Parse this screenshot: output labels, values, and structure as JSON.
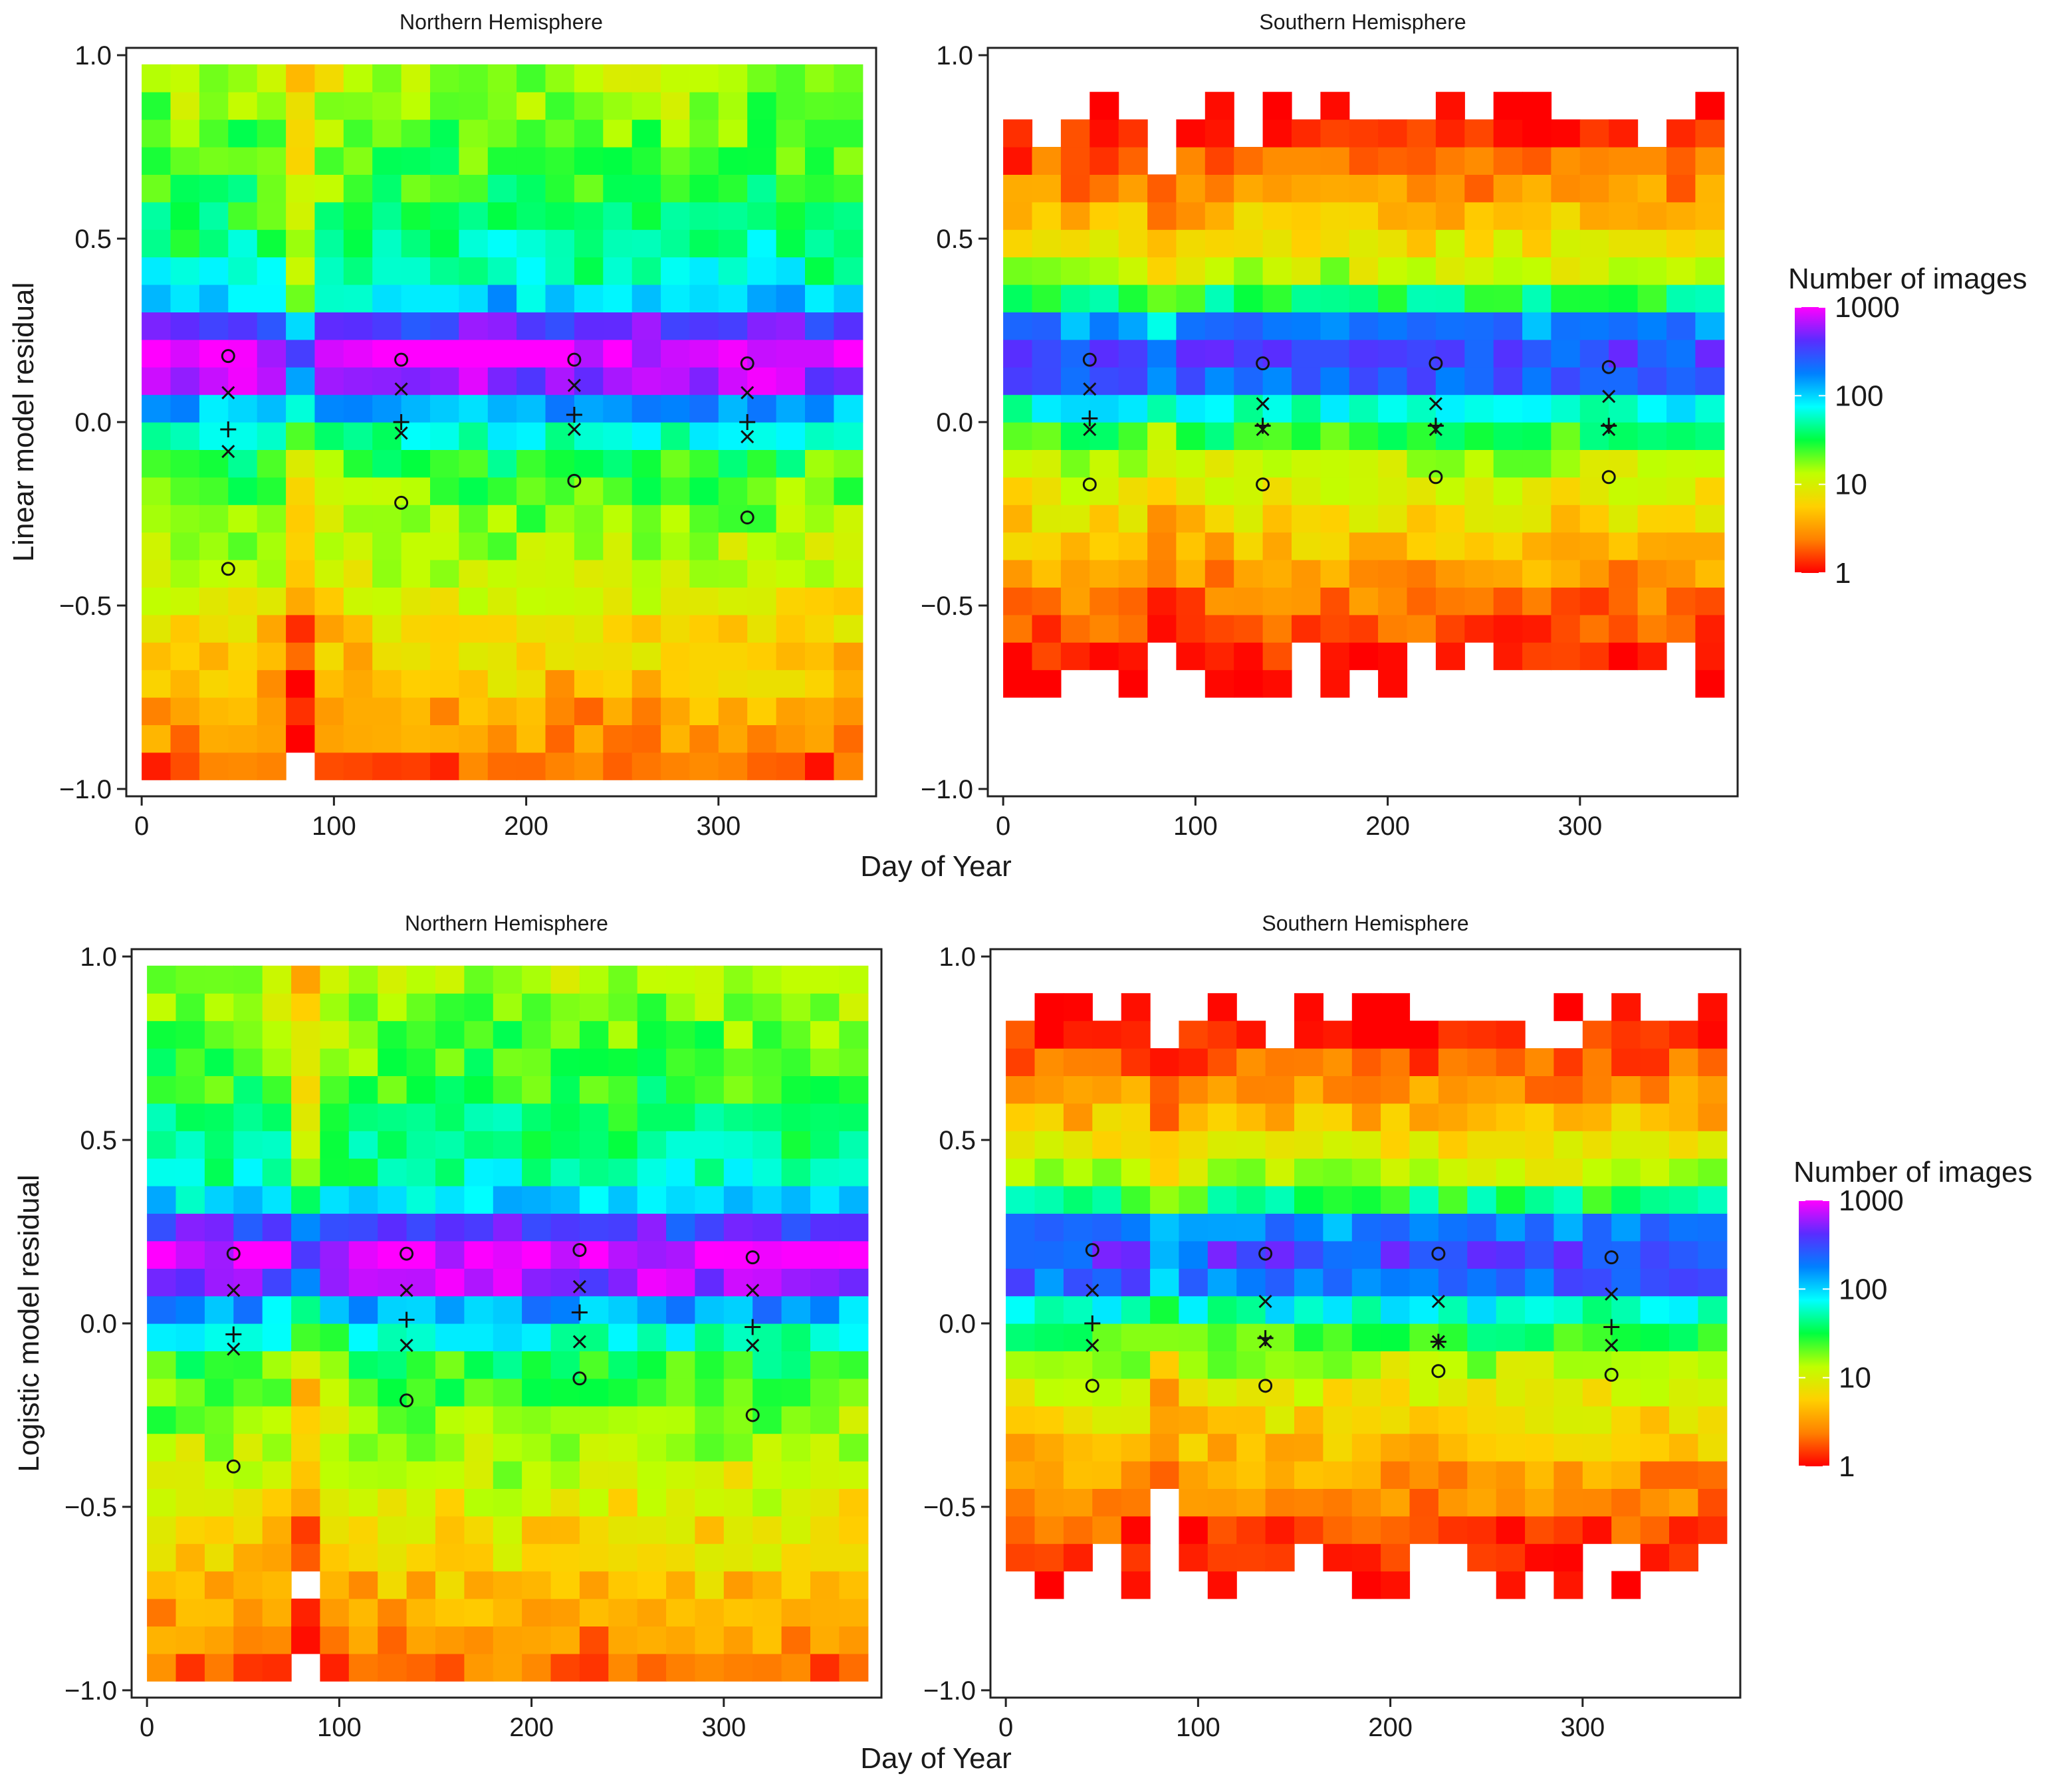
{
  "figure": {
    "x_axis_title": "Day of Year",
    "legend": {
      "title": "Number of images",
      "ticks": [
        "1000",
        "100",
        "10",
        "1"
      ],
      "tick_values": [
        1000,
        100,
        10,
        1
      ],
      "colors": [
        "#ff00ff",
        "#5a2cff",
        "#0080ff",
        "#00ffff",
        "#00ff40",
        "#c0ff00",
        "#ffd000",
        "#ff8000",
        "#ff0000"
      ]
    }
  },
  "chart_data": [
    {
      "type": "heatmap",
      "title": "Northern Hemisphere",
      "xlabel": "Day of Year",
      "ylabel": "Linear model residual",
      "xlim": [
        -8,
        382
      ],
      "ylim": [
        -1.02,
        1.02
      ],
      "xticks": [
        "0",
        "100",
        "200",
        "300"
      ],
      "yticks": [
        "-1.0",
        "-0.5",
        "0.0",
        "0.5",
        "1.0"
      ],
      "x_bin_width": 15,
      "y_bin_width": 0.075,
      "color_scale": "log",
      "color_range": [
        1,
        1000
      ],
      "heat_profile": [
        2,
        3,
        3.5,
        5,
        6,
        7,
        9,
        12,
        15,
        18,
        22,
        30,
        60,
        150,
        600,
        900,
        400,
        100,
        60,
        45,
        35,
        28,
        25,
        22,
        18,
        15
      ],
      "day_profile": [
        1.1,
        1.0,
        1.0,
        1.1,
        0.9,
        0.3,
        0.8,
        0.9,
        1.0,
        1.0,
        1.1,
        1.1,
        1.2,
        1.1,
        1.0,
        1.0,
        1.0,
        1.1,
        1.0,
        1.1,
        1.0,
        1.2,
        1.1,
        0.9,
        0.9
      ],
      "summary_points": {
        "day": [
          45,
          135,
          225,
          315
        ],
        "upper_circle": [
          0.18,
          0.17,
          0.17,
          0.16
        ],
        "upper_cross": [
          0.08,
          0.09,
          0.1,
          0.08
        ],
        "plus": [
          -0.02,
          0.0,
          0.02,
          0.0
        ],
        "lower_cross": [
          -0.08,
          -0.03,
          -0.02,
          -0.04
        ],
        "lower_circle": [
          -0.4,
          -0.22,
          -0.16,
          -0.26
        ]
      }
    },
    {
      "type": "heatmap",
      "title": "Southern Hemisphere",
      "xlabel": "Day of Year",
      "ylabel": "",
      "xlim": [
        -8,
        382
      ],
      "ylim": [
        -1.02,
        1.02
      ],
      "xticks": [
        "0",
        "100",
        "200",
        "300"
      ],
      "yticks": [
        "-1.0",
        "-0.5",
        "0.0",
        "0.5",
        "1.0"
      ],
      "x_bin_width": 15,
      "y_bin_width": 0.075,
      "color_scale": "log",
      "color_range": [
        1,
        1000
      ],
      "heat_profile": [
        0.4,
        0.5,
        0.6,
        0.8,
        1.2,
        1.8,
        2.5,
        3.5,
        5,
        7,
        10,
        15,
        30,
        70,
        250,
        350,
        180,
        40,
        14,
        8,
        5,
        3,
        2,
        1.3,
        0.8,
        0.5
      ],
      "day_profile": [
        1.0,
        1.0,
        1.0,
        1.0,
        1.0,
        0.5,
        0.9,
        1.0,
        1.0,
        1.0,
        1.0,
        1.0,
        1.0,
        1.0,
        1.0,
        1.0,
        1.0,
        1.0,
        1.0,
        1.0,
        1.0,
        1.0,
        1.0,
        1.0,
        1.0
      ],
      "summary_points": {
        "day": [
          45,
          135,
          225,
          315
        ],
        "upper_circle": [
          0.17,
          0.16,
          0.16,
          0.15
        ],
        "upper_cross": [
          0.09,
          0.05,
          0.05,
          0.07
        ],
        "plus": [
          0.01,
          -0.01,
          -0.01,
          -0.01
        ],
        "lower_cross": [
          -0.02,
          -0.02,
          -0.02,
          -0.02
        ],
        "lower_circle": [
          -0.17,
          -0.17,
          -0.15,
          -0.15
        ]
      }
    },
    {
      "type": "heatmap",
      "title": "Northern Hemisphere",
      "xlabel": "Day of Year",
      "ylabel": "Logistic model residual",
      "xlim": [
        -8,
        382
      ],
      "ylim": [
        -1.02,
        1.02
      ],
      "xticks": [
        "0",
        "100",
        "200",
        "300"
      ],
      "yticks": [
        "-1.0",
        "-0.5",
        "0.0",
        "0.5",
        "1.0"
      ],
      "x_bin_width": 15,
      "y_bin_width": 0.075,
      "color_scale": "log",
      "color_range": [
        1,
        1000
      ],
      "heat_profile": [
        2,
        3,
        3.5,
        5,
        6,
        7,
        9,
        12,
        15,
        18,
        22,
        30,
        60,
        150,
        600,
        900,
        400,
        100,
        60,
        45,
        35,
        28,
        25,
        22,
        18,
        15
      ],
      "day_profile": [
        1.1,
        1.0,
        1.0,
        1.1,
        0.9,
        0.3,
        0.8,
        0.9,
        1.0,
        1.0,
        1.1,
        1.1,
        1.2,
        1.1,
        1.0,
        1.0,
        1.0,
        1.1,
        1.0,
        1.1,
        1.0,
        1.2,
        1.1,
        0.9,
        0.9
      ],
      "summary_points": {
        "day": [
          45,
          135,
          225,
          315
        ],
        "upper_circle": [
          0.19,
          0.19,
          0.2,
          0.18
        ],
        "upper_cross": [
          0.09,
          0.09,
          0.1,
          0.09
        ],
        "plus": [
          -0.03,
          0.01,
          0.03,
          -0.01
        ],
        "lower_cross": [
          -0.07,
          -0.06,
          -0.05,
          -0.06
        ],
        "lower_circle": [
          -0.39,
          -0.21,
          -0.15,
          -0.25
        ]
      }
    },
    {
      "type": "heatmap",
      "title": "Southern Hemisphere",
      "xlabel": "Day of Year",
      "ylabel": "",
      "xlim": [
        -8,
        382
      ],
      "ylim": [
        -1.02,
        1.02
      ],
      "xticks": [
        "0",
        "100",
        "200",
        "300"
      ],
      "yticks": [
        "-1.0",
        "-0.5",
        "0.0",
        "0.5",
        "1.0"
      ],
      "x_bin_width": 15,
      "y_bin_width": 0.075,
      "color_scale": "log",
      "color_range": [
        1,
        1000
      ],
      "heat_profile": [
        0.4,
        0.5,
        0.6,
        0.8,
        1.2,
        1.8,
        2.5,
        3.5,
        5,
        7,
        10,
        15,
        30,
        70,
        250,
        350,
        180,
        40,
        14,
        8,
        5,
        3,
        2,
        1.3,
        0.8,
        0.5
      ],
      "day_profile": [
        1.0,
        1.0,
        1.0,
        1.0,
        1.0,
        0.5,
        0.9,
        1.0,
        1.0,
        1.0,
        1.0,
        1.0,
        1.0,
        1.0,
        1.0,
        1.0,
        1.0,
        1.0,
        1.0,
        1.0,
        1.0,
        1.0,
        1.0,
        1.0,
        1.0
      ],
      "summary_points": {
        "day": [
          45,
          135,
          225,
          315
        ],
        "upper_circle": [
          0.2,
          0.19,
          0.19,
          0.18
        ],
        "upper_cross": [
          0.09,
          0.06,
          0.06,
          0.08
        ],
        "plus": [
          0.0,
          -0.04,
          -0.05,
          -0.01
        ],
        "lower_cross": [
          -0.06,
          -0.05,
          -0.05,
          -0.06
        ],
        "lower_circle": [
          -0.17,
          -0.17,
          -0.13,
          -0.14
        ]
      }
    }
  ]
}
